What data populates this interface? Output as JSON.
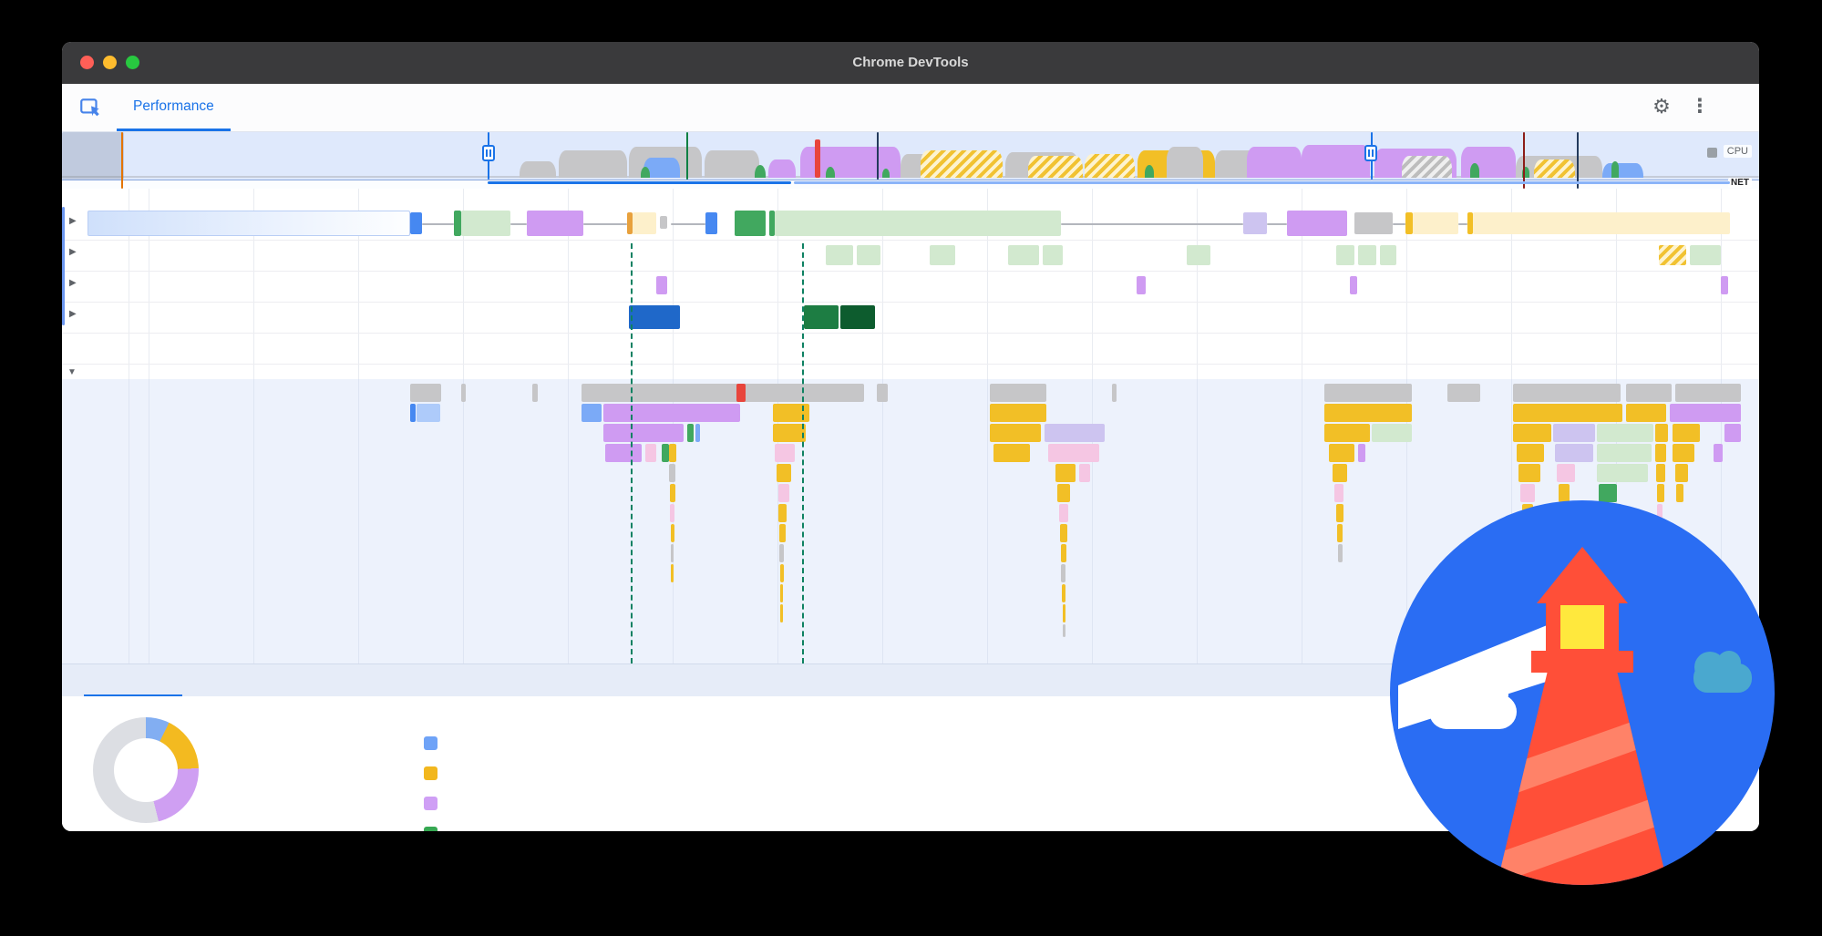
{
  "palette": {
    "gray": "#c6c6c8",
    "gray_d": "#9e9e9e",
    "red": "#e8453c",
    "yellow": "#f2bf26",
    "cream": "#fdf0cb",
    "orange": "#e8a13d",
    "purple": "#cf9bf2",
    "lav": "#cdc4f0",
    "pink": "#f5c6e3",
    "blue": "#4688f1",
    "blue_m": "#7baaf7",
    "blue_l": "#aecbfa",
    "blue_d": "#1f68c9",
    "green": "#41a85f",
    "green_l": "#d2e9cf",
    "green_d": "#1d7d43",
    "green_dd": "#0d5c2e",
    "accent": "#1a73e8",
    "teal": "#0b8043",
    "maroon": "#8c1d18",
    "navy": "#233a5c",
    "lh_blue": "#2a6df3",
    "lh_orange": "#ff4f38",
    "lh_orange_l": "#ff8268",
    "lh_yellow": "#ffe83d",
    "lh_teal": "#4aa8cf"
  },
  "window": {
    "title": "Chrome DevTools"
  },
  "toolbar": {
    "tab_label": "Performance"
  },
  "icons": {
    "gear": "⚙",
    "more": "⋮",
    "expand": "▶",
    "collapse": "▼"
  },
  "overview": {
    "cpu_label": "CPU",
    "net_label": "NET",
    "bars": [
      [
        0,
        48,
        1862,
        2,
        "#c6ccd8"
      ],
      [
        502,
        32,
        40,
        18,
        "gray",
        "blob"
      ],
      [
        545,
        20,
        75,
        30,
        "gray",
        "blob"
      ],
      [
        622,
        16,
        80,
        34,
        "gray",
        "blob"
      ],
      [
        638,
        28,
        40,
        22,
        "blue_m",
        "blob"
      ],
      [
        635,
        38,
        10,
        12,
        "green",
        "blob"
      ],
      [
        705,
        20,
        60,
        30,
        "gray",
        "blob"
      ],
      [
        760,
        36,
        12,
        14,
        "green",
        "blob"
      ],
      [
        775,
        30,
        30,
        20,
        "purple",
        "blob"
      ],
      [
        810,
        16,
        110,
        34,
        "purple",
        "blob"
      ],
      [
        826,
        8,
        6,
        42,
        "red"
      ],
      [
        838,
        38,
        10,
        12,
        "green",
        "blob"
      ],
      [
        900,
        40,
        8,
        10,
        "green",
        "blob"
      ],
      [
        920,
        24,
        62,
        26,
        "gray",
        "blob"
      ],
      [
        942,
        20,
        90,
        30,
        "",
        "hy blob"
      ],
      [
        1035,
        22,
        80,
        28,
        "gray",
        "blob"
      ],
      [
        1060,
        26,
        60,
        24,
        "",
        "hy blob"
      ],
      [
        1122,
        24,
        55,
        26,
        "",
        "hy blob"
      ],
      [
        1180,
        20,
        85,
        30,
        "yellow",
        "blob"
      ],
      [
        1212,
        16,
        40,
        34,
        "gray",
        "blob"
      ],
      [
        1188,
        36,
        10,
        14,
        "green",
        "blob"
      ],
      [
        1265,
        20,
        95,
        30,
        "gray",
        "blob"
      ],
      [
        1300,
        16,
        60,
        34,
        "purple",
        "blob"
      ],
      [
        1360,
        14,
        75,
        36,
        "purple",
        "blob"
      ],
      [
        1440,
        18,
        90,
        32,
        "purple",
        "blob"
      ],
      [
        1470,
        26,
        55,
        24,
        "",
        "hg blob"
      ],
      [
        1535,
        16,
        60,
        34,
        "purple",
        "blob"
      ],
      [
        1545,
        34,
        10,
        16,
        "green",
        "blob"
      ],
      [
        1595,
        26,
        95,
        24,
        "gray",
        "blob"
      ],
      [
        1615,
        30,
        45,
        20,
        "",
        "hy blob"
      ],
      [
        1602,
        38,
        8,
        12,
        "green",
        "blob"
      ],
      [
        1690,
        34,
        45,
        16,
        "blue_m",
        "blob"
      ],
      [
        1700,
        32,
        8,
        18,
        "green",
        "blob"
      ],
      [
        0,
        0,
        68,
        52,
        "rgba(100,110,132,0.25)"
      ],
      [
        65,
        0,
        2,
        62,
        "#e37400"
      ],
      [
        467,
        0,
        2,
        52,
        "accent"
      ],
      [
        1436,
        0,
        2,
        52,
        "accent"
      ],
      [
        685,
        0,
        2,
        52,
        "teal"
      ],
      [
        894,
        0,
        2,
        52,
        "navy"
      ],
      [
        1603,
        0,
        2,
        62,
        "maroon"
      ],
      [
        1662,
        0,
        2,
        62,
        "navy"
      ],
      [
        467,
        54,
        333,
        3,
        "accent"
      ],
      [
        803,
        54,
        1027,
        3,
        "#8ab4f8"
      ],
      [
        461,
        14,
        14,
        18,
        "",
        "pill"
      ],
      [
        1429,
        14,
        14,
        18,
        "",
        "pill"
      ]
    ]
  },
  "tracks": {
    "rows": [
      {
        "bars": [
          [
            28,
            2,
            354,
            28,
            "",
            "netgrad"
          ],
          [
            382,
            4,
            13,
            24,
            "blue"
          ],
          [
            395,
            16,
            35,
            2,
            "#b3b6bd"
          ],
          [
            430,
            2,
            8,
            28,
            "green"
          ],
          [
            438,
            2,
            54,
            28,
            "green_l"
          ],
          [
            492,
            16,
            18,
            2,
            "#b3b6bd"
          ],
          [
            510,
            2,
            62,
            28,
            "purple"
          ],
          [
            572,
            16,
            48,
            2,
            "#b3b6bd"
          ],
          [
            620,
            4,
            6,
            24,
            "orange"
          ],
          [
            626,
            4,
            26,
            24,
            "cream"
          ],
          [
            656,
            8,
            8,
            14,
            "gray"
          ],
          [
            668,
            16,
            38,
            2,
            "#b3b6bd"
          ],
          [
            706,
            4,
            13,
            24,
            "blue"
          ],
          [
            738,
            2,
            34,
            28,
            "green"
          ],
          [
            776,
            2,
            6,
            28,
            "green"
          ],
          [
            782,
            2,
            314,
            28,
            "green_l"
          ],
          [
            1096,
            16,
            200,
            2,
            "#b3b6bd"
          ],
          [
            1296,
            4,
            26,
            24,
            "lav"
          ],
          [
            1322,
            16,
            22,
            2,
            "#b3b6bd"
          ],
          [
            1344,
            2,
            66,
            28,
            "purple"
          ],
          [
            1418,
            4,
            42,
            24,
            "gray"
          ],
          [
            1460,
            16,
            14,
            2,
            "#b3b6bd"
          ],
          [
            1474,
            4,
            8,
            24,
            "yellow"
          ],
          [
            1482,
            4,
            50,
            24,
            "cream"
          ],
          [
            1532,
            16,
            10,
            2,
            "#b3b6bd"
          ],
          [
            1542,
            4,
            6,
            24,
            "yellow"
          ],
          [
            1548,
            4,
            282,
            24,
            "cream"
          ]
        ]
      },
      {
        "bars": [
          [
            838,
            6,
            30,
            22,
            "green_l"
          ],
          [
            872,
            6,
            26,
            22,
            "green_l"
          ],
          [
            952,
            6,
            28,
            22,
            "green_l"
          ],
          [
            1038,
            6,
            34,
            22,
            "green_l"
          ],
          [
            1076,
            6,
            22,
            22,
            "green_l"
          ],
          [
            1234,
            6,
            26,
            22,
            "green_l"
          ],
          [
            1398,
            6,
            20,
            22,
            "green_l"
          ],
          [
            1422,
            6,
            20,
            22,
            "green_l"
          ],
          [
            1446,
            6,
            18,
            22,
            "green_l"
          ],
          [
            1752,
            6,
            30,
            22,
            "",
            "hy"
          ],
          [
            1786,
            6,
            34,
            22,
            "green_l"
          ]
        ]
      },
      {
        "bars": [
          [
            652,
            6,
            12,
            20,
            "purple"
          ],
          [
            1179,
            6,
            10,
            20,
            "purple"
          ],
          [
            1413,
            6,
            8,
            20,
            "purple"
          ],
          [
            1820,
            6,
            8,
            20,
            "purple"
          ]
        ]
      },
      {
        "bars": [
          [
            622,
            4,
            56,
            26,
            "blue_d"
          ],
          [
            814,
            4,
            38,
            26,
            "green_d"
          ],
          [
            854,
            4,
            38,
            26,
            "green_dd"
          ]
        ]
      },
      {
        "bars": []
      }
    ],
    "overlays": [
      [
        0,
        20,
        3,
        130,
        "#6b96ef"
      ],
      [
        624,
        60,
        0,
        461,
        "",
        "dashv"
      ],
      [
        812,
        60,
        0,
        461,
        "",
        "dashv"
      ]
    ]
  },
  "flame": {
    "bars": [
      [
        382,
        5,
        34,
        20,
        "gray"
      ],
      [
        438,
        5,
        5,
        20,
        "gray"
      ],
      [
        516,
        5,
        6,
        20,
        "gray"
      ],
      [
        570,
        5,
        310,
        20,
        "gray"
      ],
      [
        740,
        5,
        10,
        20,
        "red"
      ],
      [
        894,
        5,
        12,
        20,
        "gray"
      ],
      [
        1018,
        5,
        62,
        20,
        "gray"
      ],
      [
        1152,
        5,
        5,
        20,
        "gray"
      ],
      [
        1385,
        5,
        96,
        20,
        "gray"
      ],
      [
        1520,
        5,
        36,
        20,
        "gray"
      ],
      [
        1592,
        5,
        118,
        20,
        "gray"
      ],
      [
        1716,
        5,
        50,
        20,
        "gray"
      ],
      [
        1770,
        5,
        72,
        20,
        "gray"
      ],
      [
        382,
        27,
        6,
        20,
        "blue"
      ],
      [
        389,
        27,
        26,
        20,
        "blue_l"
      ],
      [
        570,
        27,
        22,
        20,
        "blue_m"
      ],
      [
        594,
        27,
        150,
        20,
        "purple"
      ],
      [
        780,
        27,
        40,
        20,
        "yellow"
      ],
      [
        1018,
        27,
        62,
        20,
        "yellow"
      ],
      [
        1385,
        27,
        96,
        20,
        "yellow"
      ],
      [
        1592,
        27,
        120,
        20,
        "yellow"
      ],
      [
        1716,
        27,
        44,
        20,
        "yellow"
      ],
      [
        1764,
        27,
        78,
        20,
        "purple"
      ],
      [
        594,
        49,
        88,
        20,
        "purple"
      ],
      [
        686,
        49,
        7,
        20,
        "green"
      ],
      [
        695,
        49,
        5,
        20,
        "blue_m"
      ],
      [
        780,
        49,
        36,
        20,
        "yellow"
      ],
      [
        1018,
        49,
        56,
        20,
        "yellow"
      ],
      [
        1078,
        49,
        66,
        20,
        "lav"
      ],
      [
        1385,
        49,
        50,
        20,
        "yellow"
      ],
      [
        1437,
        49,
        44,
        20,
        "green_l"
      ],
      [
        1592,
        49,
        42,
        20,
        "yellow"
      ],
      [
        1636,
        49,
        46,
        20,
        "lav"
      ],
      [
        1684,
        49,
        62,
        20,
        "green_l"
      ],
      [
        1748,
        49,
        14,
        20,
        "yellow"
      ],
      [
        1767,
        49,
        30,
        20,
        "yellow"
      ],
      [
        1824,
        49,
        18,
        20,
        "purple"
      ],
      [
        596,
        71,
        40,
        20,
        "purple"
      ],
      [
        640,
        71,
        12,
        20,
        "pink"
      ],
      [
        658,
        71,
        8,
        20,
        "green"
      ],
      [
        666,
        71,
        8,
        20,
        "yellow"
      ],
      [
        782,
        71,
        22,
        20,
        "pink"
      ],
      [
        1022,
        71,
        40,
        20,
        "yellow"
      ],
      [
        1082,
        71,
        56,
        20,
        "pink"
      ],
      [
        1390,
        71,
        28,
        20,
        "yellow"
      ],
      [
        1422,
        71,
        8,
        20,
        "purple"
      ],
      [
        1596,
        71,
        30,
        20,
        "yellow"
      ],
      [
        1638,
        71,
        42,
        20,
        "lav"
      ],
      [
        1684,
        71,
        60,
        20,
        "green_l"
      ],
      [
        1748,
        71,
        12,
        20,
        "yellow"
      ],
      [
        1767,
        71,
        24,
        20,
        "yellow"
      ],
      [
        1812,
        71,
        10,
        20,
        "purple"
      ],
      [
        666,
        93,
        7,
        20,
        "gray"
      ],
      [
        784,
        93,
        16,
        20,
        "yellow"
      ],
      [
        1090,
        93,
        22,
        20,
        "yellow"
      ],
      [
        1116,
        93,
        12,
        20,
        "pink"
      ],
      [
        1394,
        93,
        16,
        20,
        "yellow"
      ],
      [
        1598,
        93,
        24,
        20,
        "yellow"
      ],
      [
        1640,
        93,
        20,
        20,
        "pink"
      ],
      [
        1684,
        93,
        56,
        20,
        "green_l"
      ],
      [
        1749,
        93,
        10,
        20,
        "yellow"
      ],
      [
        1770,
        93,
        14,
        20,
        "yellow"
      ],
      [
        667,
        115,
        6,
        20,
        "yellow"
      ],
      [
        786,
        115,
        12,
        20,
        "pink"
      ],
      [
        1092,
        115,
        14,
        20,
        "yellow"
      ],
      [
        1396,
        115,
        10,
        20,
        "pink"
      ],
      [
        1600,
        115,
        16,
        20,
        "pink"
      ],
      [
        1642,
        115,
        12,
        20,
        "yellow"
      ],
      [
        1686,
        115,
        20,
        20,
        "green"
      ],
      [
        1750,
        115,
        8,
        20,
        "yellow"
      ],
      [
        1771,
        115,
        8,
        20,
        "yellow"
      ],
      [
        667,
        137,
        5,
        20,
        "pink"
      ],
      [
        786,
        137,
        9,
        20,
        "yellow"
      ],
      [
        1094,
        137,
        10,
        20,
        "pink"
      ],
      [
        1398,
        137,
        8,
        20,
        "yellow"
      ],
      [
        1602,
        137,
        12,
        20,
        "yellow"
      ],
      [
        1750,
        137,
        6,
        20,
        "pink"
      ],
      [
        668,
        159,
        4,
        20,
        "yellow"
      ],
      [
        787,
        159,
        7,
        20,
        "yellow"
      ],
      [
        1095,
        159,
        8,
        20,
        "yellow"
      ],
      [
        1399,
        159,
        6,
        20,
        "yellow"
      ],
      [
        1603,
        159,
        8,
        20,
        "yellow"
      ],
      [
        1751,
        159,
        5,
        20,
        "yellow"
      ],
      [
        668,
        181,
        3,
        20,
        "gray"
      ],
      [
        787,
        181,
        5,
        20,
        "gray"
      ],
      [
        1096,
        181,
        6,
        20,
        "yellow"
      ],
      [
        1400,
        181,
        5,
        20,
        "gray"
      ],
      [
        1604,
        181,
        6,
        20,
        "gray"
      ],
      [
        668,
        203,
        3,
        20,
        "yellow"
      ],
      [
        788,
        203,
        4,
        20,
        "yellow"
      ],
      [
        1096,
        203,
        5,
        20,
        "gray"
      ],
      [
        1604,
        203,
        5,
        20,
        "yellow"
      ],
      [
        788,
        225,
        3,
        20,
        "yellow"
      ],
      [
        1097,
        225,
        4,
        20,
        "yellow"
      ],
      [
        788,
        247,
        3,
        20,
        "yellow"
      ],
      [
        1098,
        247,
        3,
        20,
        "yellow"
      ],
      [
        1098,
        269,
        3,
        14,
        "gray"
      ]
    ]
  },
  "summary": {
    "donut": {
      "segments": [
        {
          "c": "#82aef2",
          "deg": 26
        },
        {
          "c": "#f3ba20",
          "deg": 62
        },
        {
          "c": "#cf9ff2",
          "deg": 78
        },
        {
          "c": "#dcdee3",
          "deg": 194
        }
      ]
    },
    "legend": [
      "#6fa3f7",
      "#f2b71e",
      "#cf9ff5",
      "#36a852"
    ]
  }
}
